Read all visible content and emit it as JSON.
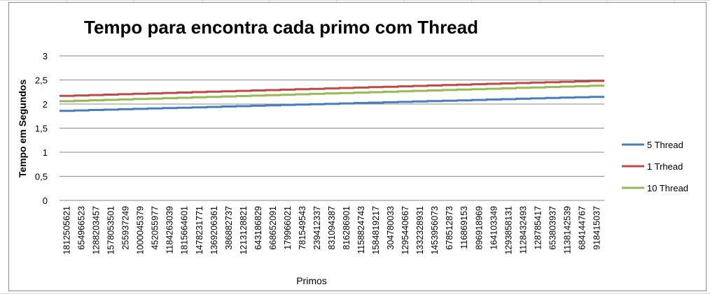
{
  "chart_data": {
    "type": "line",
    "title": "Tempo para encontra cada primo com Thread",
    "xlabel": "Primos",
    "ylabel": "Tempo em Segundos",
    "ylim": [
      0,
      3
    ],
    "yticks": [
      "0",
      "0,5",
      "1",
      "1,5",
      "2",
      "2,5",
      "3"
    ],
    "ytick_values": [
      0,
      0.5,
      1,
      1.5,
      2,
      2.5,
      3
    ],
    "grid": "horizontal",
    "legend_position": "right",
    "categories": [
      "1812505621",
      "654966523",
      "1288203457",
      "1578053501",
      "255937249",
      "1000045379",
      "452055977",
      "1184263039",
      "1815664601",
      "1478231771",
      "1369206361",
      "386882737",
      "1213128821",
      "643186829",
      "668652091",
      "179966021",
      "781549543",
      "239412337",
      "831094387",
      "816286901",
      "1158824743",
      "1584819217",
      "304780033",
      "1295440667",
      "1332328931",
      "1453956073",
      "678512873",
      "116869153",
      "896918969",
      "164103349",
      "1293858131",
      "1128432493",
      "128785417",
      "653803937",
      "1138142539",
      "684144767",
      "918415037"
    ],
    "series": [
      {
        "name": "5 Thread",
        "color": "#4a7ebb",
        "start": 1.86,
        "end": 2.15
      },
      {
        "name": "1 Trhead",
        "color": "#be4b48",
        "start": 2.17,
        "end": 2.48
      },
      {
        "name": "10 Thread",
        "color": "#98b954",
        "start": 2.06,
        "end": 2.38
      }
    ]
  }
}
